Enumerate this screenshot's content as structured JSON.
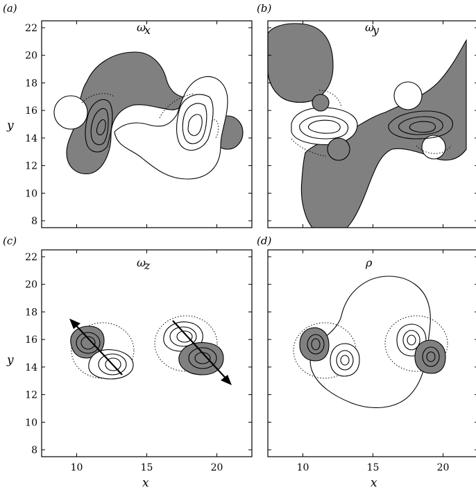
{
  "colors": {
    "negative_fill": "#808080",
    "positive_fill": "#ffffff",
    "line": "#000000"
  },
  "chart_data": [
    {
      "type": "heatmap",
      "panel_label": "(a)",
      "quantity": "ω",
      "quantity_sub": "x",
      "xlabel": "",
      "ylabel": "y",
      "xlim": [
        7.5,
        22.5
      ],
      "ylim": [
        7.5,
        22.5
      ],
      "x_ticks": [],
      "y_ticks": [
        "8",
        "10",
        "12",
        "14",
        "16",
        "18",
        "20",
        "22"
      ]
    },
    {
      "type": "heatmap",
      "panel_label": "(b)",
      "quantity": "ω",
      "quantity_sub": "y",
      "xlabel": "",
      "ylabel": "",
      "xlim": [
        7.5,
        22.5
      ],
      "ylim": [
        7.5,
        22.5
      ],
      "x_ticks": [],
      "y_ticks": []
    },
    {
      "type": "heatmap",
      "panel_label": "(c)",
      "quantity": "ω",
      "quantity_sub": "z",
      "xlabel": "x",
      "ylabel": "y",
      "xlim": [
        7.5,
        22.5
      ],
      "ylim": [
        7.5,
        22.5
      ],
      "x_ticks": [
        "10",
        "15",
        "20"
      ],
      "y_ticks": [
        "8",
        "10",
        "12",
        "14",
        "16",
        "18",
        "20",
        "22"
      ]
    },
    {
      "type": "heatmap",
      "panel_label": "(d)",
      "quantity": "ρ",
      "quantity_sub": "",
      "xlabel": "x",
      "ylabel": "",
      "xlim": [
        7.5,
        22.5
      ],
      "ylim": [
        7.5,
        22.5
      ],
      "x_ticks": [
        "10",
        "15",
        "20"
      ],
      "y_ticks": []
    }
  ]
}
